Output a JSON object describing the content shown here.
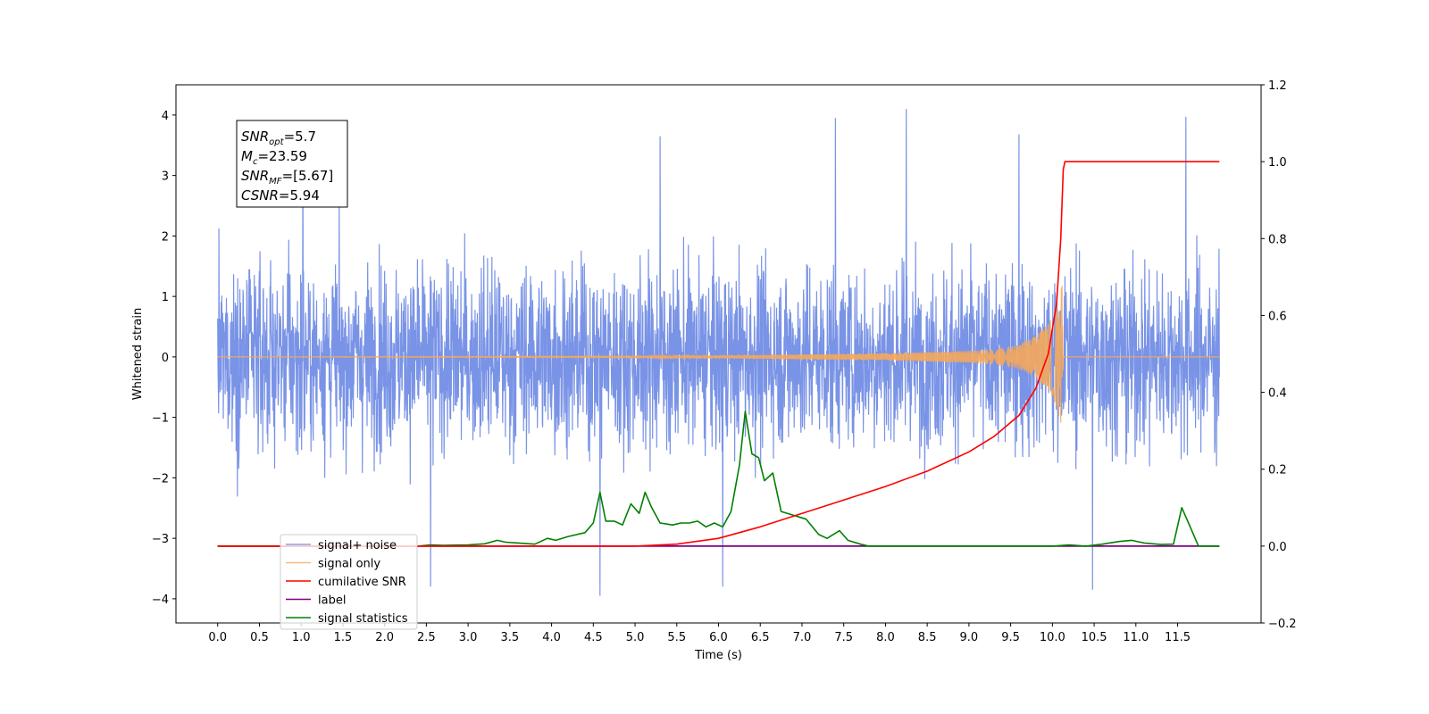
{
  "chart_data": {
    "type": "line",
    "xlabel": "Time (s)",
    "ylabel": "Whitened strain",
    "xlim": [
      -0.5,
      12.5
    ],
    "ylim": [
      -4.4,
      4.5
    ],
    "ylim_right": [
      -0.2,
      1.2
    ],
    "x_ticks": [
      "0.0",
      "0.5",
      "1.0",
      "1.5",
      "2.0",
      "2.5",
      "3.0",
      "3.5",
      "4.0",
      "4.5",
      "5.0",
      "5.5",
      "6.0",
      "6.5",
      "7.0",
      "7.5",
      "8.0",
      "8.5",
      "9.0",
      "9.5",
      "10.0",
      "10.5",
      "11.0",
      "11.5"
    ],
    "y_ticks_left": [
      "−4",
      "−3",
      "−2",
      "−1",
      "0",
      "1",
      "2",
      "3",
      "4"
    ],
    "y_ticks_right": [
      "−0.2",
      "0.0",
      "0.2",
      "0.4",
      "0.6",
      "0.8",
      "1.0",
      "1.2"
    ],
    "grid": false,
    "legend_position": "lower-left",
    "annotation": {
      "lines": [
        {
          "sym": "SNR",
          "sub": "opt",
          "value": "=5.7"
        },
        {
          "sym": "M",
          "sub": "c",
          "value": "=23.59"
        },
        {
          "sym": "SNR",
          "sub": "MF",
          "value": "=[5.67]"
        },
        {
          "sym": "CSNR",
          "sub": "",
          "value": "=5.94"
        }
      ]
    },
    "series": [
      {
        "name": "signal+ noise",
        "axis": "left",
        "color": "#6a87e3",
        "description_noise": {
          "x_range": [
            0.0,
            12.0
          ],
          "typical_band": [
            -2.0,
            2.0
          ],
          "extremes": [
            -4.0,
            4.1
          ]
        },
        "notable_peaks": [
          [
            1.02,
            3.65
          ],
          [
            5.3,
            3.65
          ],
          [
            7.4,
            3.95
          ],
          [
            8.25,
            4.12
          ],
          [
            9.6,
            3.68
          ],
          [
            11.6,
            3.97
          ]
        ],
        "notable_troughs": [
          [
            2.55,
            -3.8
          ],
          [
            4.58,
            -3.95
          ],
          [
            6.05,
            -3.8
          ],
          [
            10.48,
            -3.85
          ]
        ]
      },
      {
        "name": "signal only",
        "axis": "left",
        "color": "#f5a85a",
        "x": [
          0.0,
          5.0,
          6.0,
          7.0,
          8.0,
          8.5,
          9.0,
          9.3,
          9.6,
          9.8,
          9.9,
          10.0,
          10.05,
          10.1,
          10.12,
          10.13,
          12.0
        ],
        "envelope": [
          0.0,
          0.01,
          0.02,
          0.04,
          0.06,
          0.08,
          0.1,
          0.13,
          0.2,
          0.35,
          0.48,
          0.65,
          0.85,
          1.1,
          1.2,
          0.0,
          0.0
        ]
      },
      {
        "name": "cumilative SNR",
        "axis": "right",
        "color": "#ff0000",
        "x": [
          0.0,
          5.0,
          5.5,
          6.0,
          6.5,
          7.0,
          7.5,
          8.0,
          8.5,
          9.0,
          9.3,
          9.6,
          9.8,
          9.95,
          10.05,
          10.1,
          10.13,
          10.15,
          12.0
        ],
        "y": [
          0.0,
          0.0,
          0.005,
          0.02,
          0.05,
          0.085,
          0.12,
          0.155,
          0.195,
          0.245,
          0.285,
          0.34,
          0.41,
          0.5,
          0.63,
          0.8,
          0.98,
          1.0,
          1.0
        ]
      },
      {
        "name": "label",
        "axis": "right",
        "color": "#800080",
        "x": [
          0.0,
          12.0
        ],
        "y": [
          0.0,
          0.0
        ]
      },
      {
        "name": "signal statistics",
        "axis": "right",
        "color": "#008000",
        "x": [
          0.0,
          2.4,
          2.55,
          2.7,
          3.0,
          3.2,
          3.35,
          3.45,
          3.6,
          3.8,
          3.95,
          4.05,
          4.2,
          4.4,
          4.5,
          4.58,
          4.65,
          4.75,
          4.85,
          4.95,
          5.05,
          5.12,
          5.2,
          5.3,
          5.45,
          5.55,
          5.65,
          5.75,
          5.85,
          5.95,
          6.05,
          6.15,
          6.25,
          6.32,
          6.4,
          6.48,
          6.55,
          6.65,
          6.75,
          6.9,
          7.05,
          7.2,
          7.3,
          7.45,
          7.55,
          7.7,
          7.8,
          9.5,
          10.0,
          10.2,
          10.4,
          10.6,
          10.8,
          10.95,
          11.1,
          11.3,
          11.45,
          11.55,
          11.65,
          11.75,
          12.0
        ],
        "y": [
          0.0,
          0.0,
          0.003,
          0.002,
          0.003,
          0.006,
          0.015,
          0.01,
          0.008,
          0.005,
          0.02,
          0.015,
          0.025,
          0.035,
          0.06,
          0.14,
          0.065,
          0.065,
          0.055,
          0.11,
          0.085,
          0.14,
          0.1,
          0.06,
          0.055,
          0.06,
          0.06,
          0.065,
          0.05,
          0.06,
          0.05,
          0.09,
          0.21,
          0.35,
          0.24,
          0.23,
          0.17,
          0.19,
          0.09,
          0.08,
          0.07,
          0.03,
          0.02,
          0.04,
          0.015,
          0.005,
          0.0,
          0.0,
          0.0,
          0.003,
          0.0,
          0.005,
          0.012,
          0.015,
          0.008,
          0.004,
          0.005,
          0.1,
          0.05,
          0.0,
          0.0
        ]
      }
    ]
  }
}
